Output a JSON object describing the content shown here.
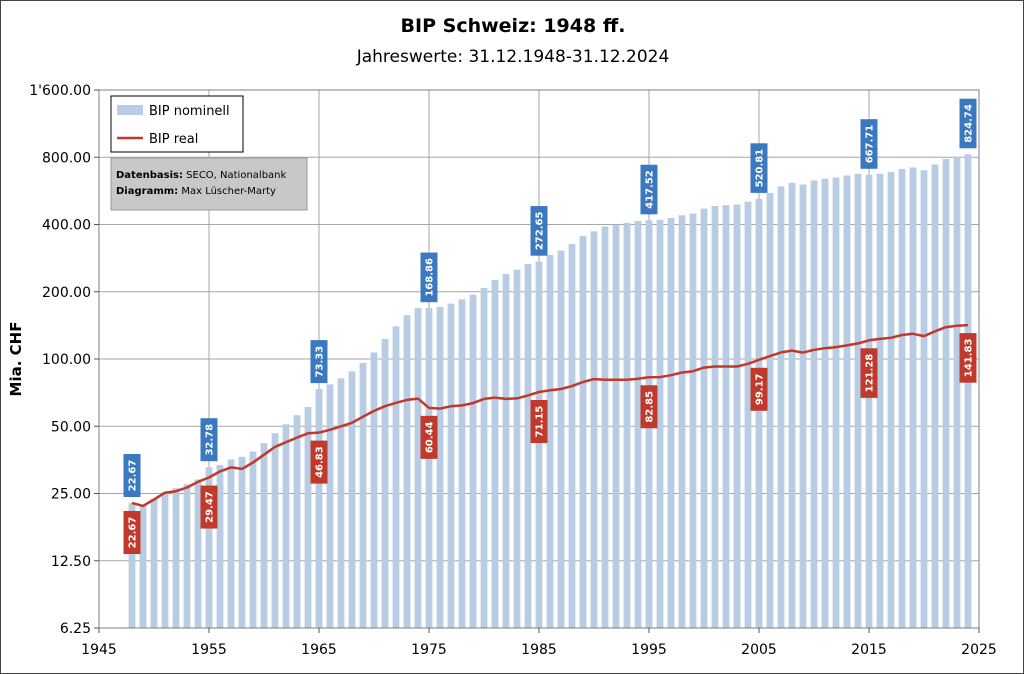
{
  "chart_data": {
    "type": "bar",
    "title": "BIP Schweiz: 1948 ff.",
    "subtitle": "Jahreswerte: 31.12.1948-31.12.2024",
    "ylabel": "Mia. CHF",
    "y_scale": "log2",
    "ylim": [
      6.25,
      1600
    ],
    "y_ticks": [
      "6.25",
      "12.50",
      "25.00",
      "50.00",
      "100.00",
      "200.00",
      "400.00",
      "800.00",
      "1'600.00"
    ],
    "xlim": [
      1945,
      2025
    ],
    "x_ticks": [
      "1945",
      "1955",
      "1965",
      "1975",
      "1985",
      "1995",
      "2005",
      "2015",
      "2025"
    ],
    "years": [
      1948,
      1949,
      1950,
      1951,
      1952,
      1953,
      1954,
      1955,
      1956,
      1957,
      1958,
      1959,
      1960,
      1961,
      1962,
      1963,
      1964,
      1965,
      1966,
      1967,
      1968,
      1969,
      1970,
      1971,
      1972,
      1973,
      1974,
      1975,
      1976,
      1977,
      1978,
      1979,
      1980,
      1981,
      1982,
      1983,
      1984,
      1985,
      1986,
      1987,
      1988,
      1989,
      1990,
      1991,
      1992,
      1993,
      1994,
      1995,
      1996,
      1997,
      1998,
      1999,
      2000,
      2001,
      2002,
      2003,
      2004,
      2005,
      2006,
      2007,
      2008,
      2009,
      2010,
      2011,
      2012,
      2013,
      2014,
      2015,
      2016,
      2017,
      2018,
      2019,
      2020,
      2021,
      2022,
      2023,
      2024
    ],
    "series": [
      {
        "name": "BIP nominell",
        "kind": "bar",
        "color": "#b8cce4",
        "values": [
          22.67,
          22.3,
          23.6,
          25.3,
          26.4,
          27.5,
          28.9,
          32.78,
          33.5,
          35.5,
          36.5,
          38.5,
          42.0,
          46.5,
          51.0,
          56.0,
          61.0,
          73.33,
          77.0,
          82.0,
          88.0,
          96.0,
          107.0,
          123.0,
          140.0,
          157.0,
          169.0,
          168.86,
          171.0,
          177.0,
          185.0,
          194.0,
          208.0,
          226.0,
          240.0,
          251.0,
          266.0,
          272.65,
          292.0,
          306.0,
          327.0,
          355.0,
          373.0,
          392.0,
          399.0,
          407.0,
          415.0,
          417.52,
          420.0,
          428.0,
          440.0,
          448.0,
          471.0,
          484.0,
          488.0,
          492.0,
          506.0,
          520.81,
          553.0,
          592.0,
          615.0,
          604.0,
          630.0,
          641.0,
          649.0,
          663.0,
          675.0,
          667.71,
          675.0,
          686.0,
          709.0,
          720.0,
          700.0,
          743.0,
          787.0,
          805.0,
          824.74
        ]
      },
      {
        "name": "BIP real",
        "kind": "line",
        "color": "#c0392b",
        "values": [
          22.67,
          22.0,
          23.5,
          25.2,
          25.6,
          26.6,
          28.2,
          29.47,
          31.4,
          32.7,
          32.2,
          34.4,
          37.3,
          40.4,
          42.4,
          44.5,
          46.5,
          46.83,
          48.2,
          50.0,
          51.8,
          55.2,
          58.6,
          61.5,
          63.7,
          65.6,
          66.5,
          60.44,
          60.0,
          61.5,
          62.0,
          63.5,
          66.3,
          67.2,
          66.3,
          66.6,
          68.7,
          71.15,
          72.4,
          73.4,
          75.6,
          78.9,
          81.3,
          80.8,
          80.7,
          80.8,
          81.5,
          82.85,
          83.0,
          84.6,
          87.0,
          88.2,
          91.5,
          92.6,
          92.6,
          92.6,
          95.2,
          99.17,
          103.0,
          107.0,
          109.0,
          106.8,
          110.0,
          111.8,
          113.0,
          115.0,
          117.5,
          121.28,
          123.0,
          124.4,
          128.0,
          129.6,
          126.6,
          133.0,
          139.0,
          140.8,
          141.83
        ]
      }
    ],
    "nominal_labels": [
      {
        "year": 1948,
        "text": "22.67"
      },
      {
        "year": 1955,
        "text": "32.78"
      },
      {
        "year": 1965,
        "text": "73.33"
      },
      {
        "year": 1975,
        "text": "168.86"
      },
      {
        "year": 1985,
        "text": "272.65"
      },
      {
        "year": 1995,
        "text": "417.52"
      },
      {
        "year": 2005,
        "text": "520.81"
      },
      {
        "year": 2015,
        "text": "667.71"
      },
      {
        "year": 2024,
        "text": "824.74"
      }
    ],
    "real_labels": [
      {
        "year": 1948,
        "text": "22.67"
      },
      {
        "year": 1955,
        "text": "29.47"
      },
      {
        "year": 1965,
        "text": "46.83"
      },
      {
        "year": 1975,
        "text": "60.44"
      },
      {
        "year": 1985,
        "text": "71.15"
      },
      {
        "year": 1995,
        "text": "82.85"
      },
      {
        "year": 2005,
        "text": "99.17"
      },
      {
        "year": 2015,
        "text": "121.28"
      },
      {
        "year": 2024,
        "text": "141.83"
      }
    ],
    "grid": true,
    "legend": {
      "placement": "top-left",
      "entries": [
        "BIP nominell",
        "BIP real"
      ]
    },
    "source_box": {
      "line1_label": "Datenbasis:",
      "line1_value": " SECO, Nationalbank",
      "line2_label": "Diagramm:",
      "line2_value": " Max Lüscher-Marty"
    },
    "colors": {
      "nominal_label_bg": "#3a78c0",
      "real_label_bg": "#c0392b",
      "source_bg": "#c8c8c8"
    }
  }
}
